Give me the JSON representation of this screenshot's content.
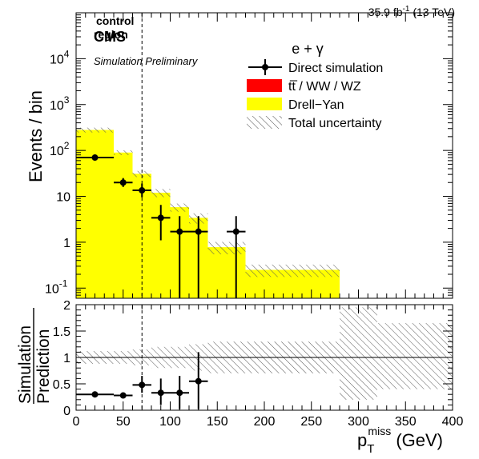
{
  "header": {
    "lumi_prefix": "35.9 fb",
    "lumi_exp": "-1",
    "lumi_suffix": " (13 TeV)",
    "cms": "CMS",
    "sim": "Simulation Preliminary",
    "region_line1": "control",
    "region_line2": "region"
  },
  "colors": {
    "ttbar": "#ff0000",
    "dy": "#ffff00",
    "data": "#000000",
    "uncertainty_hatch": "#555555"
  },
  "chart_data": [
    {
      "type": "bar",
      "panel": "main",
      "channel": "e + γ",
      "ylabel": "Events / bin",
      "yscale": "log",
      "ylim": [
        0.06,
        100000
      ],
      "yticks": [
        {
          "v": 0.1,
          "base": "10",
          "exp": "-1"
        },
        {
          "v": 1,
          "base": "1",
          "exp": ""
        },
        {
          "v": 10,
          "base": "10",
          "exp": ""
        },
        {
          "v": 100,
          "base": "10",
          "exp": "2"
        },
        {
          "v": 1000,
          "base": "10",
          "exp": "3"
        },
        {
          "v": 10000,
          "base": "10",
          "exp": "4"
        }
      ],
      "bins": [
        {
          "lo": 0,
          "hi": 40,
          "dy": 280,
          "ttbar": 0,
          "unc": 0.12
        },
        {
          "lo": 40,
          "hi": 60,
          "dy": 90,
          "ttbar": 0,
          "unc": 0.12
        },
        {
          "lo": 60,
          "hi": 80,
          "dy": 31,
          "ttbar": 0,
          "unc": 0.15
        },
        {
          "lo": 80,
          "hi": 100,
          "dy": 12,
          "ttbar": 0,
          "unc": 0.2
        },
        {
          "lo": 100,
          "hi": 120,
          "dy": 5.8,
          "ttbar": 0,
          "unc": 0.2
        },
        {
          "lo": 120,
          "hi": 140,
          "dy": 3.4,
          "ttbar": 0,
          "unc": 0.25
        },
        {
          "lo": 140,
          "hi": 180,
          "dy": 0.78,
          "ttbar": 0,
          "unc": 0.3
        },
        {
          "lo": 180,
          "hi": 280,
          "dy": 0.25,
          "ttbar": 0,
          "unc": 0.3
        },
        {
          "lo": 280,
          "hi": 320,
          "dy": 0,
          "ttbar": 0,
          "unc": 0
        },
        {
          "lo": 320,
          "hi": 400,
          "dy": 0,
          "ttbar": 0,
          "unc": 0
        }
      ],
      "data_points": [
        {
          "x": 20,
          "xerr": 20,
          "y": 70,
          "ylo": 62,
          "yhi": 79
        },
        {
          "x": 50,
          "xerr": 10,
          "y": 20,
          "ylo": 16,
          "yhi": 25
        },
        {
          "x": 70,
          "xerr": 10,
          "y": 13.5,
          "ylo": 9.5,
          "yhi": 19
        },
        {
          "x": 90,
          "xerr": 10,
          "y": 3.4,
          "ylo": 1.1,
          "yhi": 6.5
        },
        {
          "x": 110,
          "xerr": 10,
          "y": 1.7,
          "ylo": 0.06,
          "yhi": 3.7
        },
        {
          "x": 130,
          "xerr": 10,
          "y": 1.7,
          "ylo": 0.06,
          "yhi": 3.7
        },
        {
          "x": 170,
          "xerr": 10,
          "y": 1.7,
          "ylo": 0.06,
          "yhi": 3.7
        }
      ],
      "cut_line_x": 70,
      "legend": [
        {
          "kind": "marker",
          "label": "Direct simulation"
        },
        {
          "kind": "fill",
          "color": "#ff0000",
          "label": "tt̅ / WW / WZ"
        },
        {
          "kind": "fill",
          "color": "#ffff00",
          "label": "Drell−Yan"
        },
        {
          "kind": "hatch",
          "label": "Total uncertainty"
        }
      ]
    },
    {
      "type": "scatter",
      "panel": "ratio",
      "ylabel_top": "Simulation",
      "ylabel_bottom": "Prediction",
      "xlabel_main": "p",
      "xlabel_sub": "T",
      "xlabel_sup": "miss",
      "xlabel_unit": " (GeV)",
      "xlim": [
        0,
        400
      ],
      "ylim": [
        0,
        2
      ],
      "xticks": [
        0,
        50,
        100,
        150,
        200,
        250,
        300,
        350,
        400
      ],
      "yticks": [
        0,
        0.5,
        1,
        1.5,
        2
      ],
      "ytick_labels": [
        "0",
        "0.5",
        "1",
        "1.5",
        "2"
      ],
      "unit_line": 1,
      "uncertainty_band": [
        {
          "lo": 0,
          "hi": 40,
          "down": 0.88,
          "up": 1.12
        },
        {
          "lo": 40,
          "hi": 60,
          "down": 0.88,
          "up": 1.12
        },
        {
          "lo": 60,
          "hi": 80,
          "down": 0.85,
          "up": 1.15
        },
        {
          "lo": 80,
          "hi": 100,
          "down": 0.8,
          "up": 1.2
        },
        {
          "lo": 100,
          "hi": 120,
          "down": 0.8,
          "up": 1.2
        },
        {
          "lo": 120,
          "hi": 140,
          "down": 0.75,
          "up": 1.25
        },
        {
          "lo": 140,
          "hi": 180,
          "down": 0.7,
          "up": 1.3
        },
        {
          "lo": 180,
          "hi": 280,
          "down": 0.7,
          "up": 1.3
        },
        {
          "lo": 280,
          "hi": 320,
          "down": 0.2,
          "up": 1.95
        },
        {
          "lo": 320,
          "hi": 400,
          "down": 0.4,
          "up": 1.65
        }
      ],
      "points": [
        {
          "x": 20,
          "xerr": 20,
          "y": 0.3,
          "ylo": 0.26,
          "yhi": 0.33
        },
        {
          "x": 50,
          "xerr": 10,
          "y": 0.28,
          "ylo": 0.24,
          "yhi": 0.33
        },
        {
          "x": 70,
          "xerr": 10,
          "y": 0.48,
          "ylo": 0.33,
          "yhi": 0.65
        },
        {
          "x": 90,
          "xerr": 10,
          "y": 0.33,
          "ylo": 0.1,
          "yhi": 0.6
        },
        {
          "x": 110,
          "xerr": 10,
          "y": 0.33,
          "ylo": 0.02,
          "yhi": 0.65
        },
        {
          "x": 130,
          "xerr": 10,
          "y": 0.55,
          "ylo": 0.02,
          "yhi": 1.1
        }
      ]
    }
  ]
}
